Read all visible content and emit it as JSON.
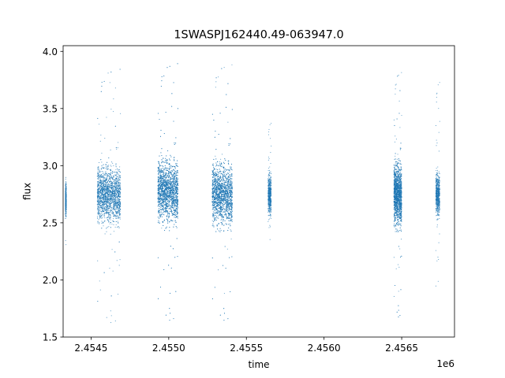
{
  "chart_data": {
    "type": "scatter",
    "title": "1SWASPJ162440.49-063947.0",
    "xlabel": "time",
    "ylabel": "flux",
    "x_offset_label": "1e6",
    "xlim": [
      2454320,
      2456840
    ],
    "ylim": [
      1.5,
      4.05
    ],
    "x_ticks": [
      2454500,
      2455000,
      2455500,
      2456000,
      2456500
    ],
    "x_tick_labels": [
      "2.4545",
      "2.4550",
      "2.4555",
      "2.4560",
      "2.4565"
    ],
    "y_ticks": [
      1.5,
      2.0,
      2.5,
      3.0,
      3.5,
      4.0
    ],
    "y_tick_labels": [
      "1.5",
      "2.0",
      "2.5",
      "3.0",
      "3.5",
      "4.0"
    ],
    "grid": false,
    "marker_color": "#1f77b4",
    "observing_seasons": [
      {
        "t_start": 2454335,
        "t_end": 2454340,
        "flux_center": 2.7,
        "flux_spread": 0.12,
        "flux_min": 2.3,
        "flux_max": 3.01,
        "density": 0.2
      },
      {
        "t_start": 2454540,
        "t_end": 2454690,
        "flux_center": 2.75,
        "flux_spread": 0.2,
        "flux_min": 1.6,
        "flux_max": 3.88,
        "density": 1.0
      },
      {
        "t_start": 2454930,
        "t_end": 2455060,
        "flux_center": 2.78,
        "flux_spread": 0.22,
        "flux_min": 1.62,
        "flux_max": 3.93,
        "density": 1.2
      },
      {
        "t_start": 2455280,
        "t_end": 2455410,
        "flux_center": 2.75,
        "flux_spread": 0.22,
        "flux_min": 1.62,
        "flux_max": 3.92,
        "density": 1.1
      },
      {
        "t_start": 2455640,
        "t_end": 2455660,
        "flux_center": 2.75,
        "flux_spread": 0.15,
        "flux_min": 2.22,
        "flux_max": 3.39,
        "density": 0.25
      },
      {
        "t_start": 2456450,
        "t_end": 2456500,
        "flux_center": 2.75,
        "flux_spread": 0.22,
        "flux_min": 1.65,
        "flux_max": 3.85,
        "density": 0.9
      },
      {
        "t_start": 2456720,
        "t_end": 2456745,
        "flux_center": 2.75,
        "flux_spread": 0.15,
        "flux_min": 1.76,
        "flux_max": 3.76,
        "density": 0.3
      }
    ]
  }
}
